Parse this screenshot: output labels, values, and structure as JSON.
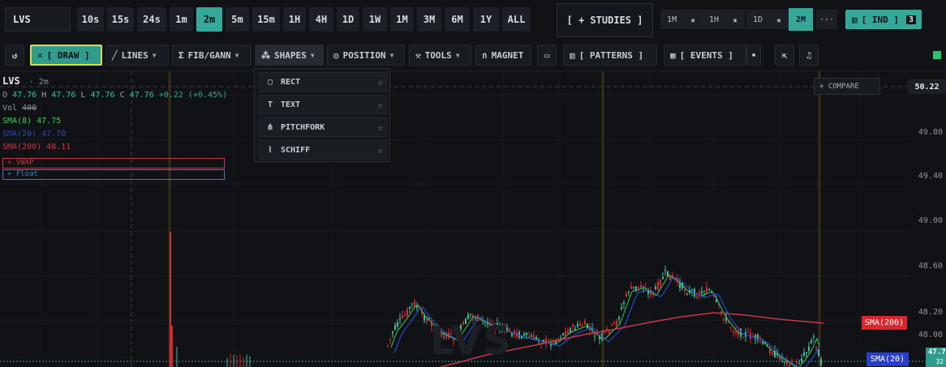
{
  "symbol": "LVS",
  "timeframes": [
    "10s",
    "15s",
    "24s",
    "1m",
    "2m",
    "5m",
    "15m",
    "1H",
    "4H",
    "1D",
    "1W",
    "1M",
    "3M",
    "6M",
    "1Y",
    "ALL"
  ],
  "active_timeframe": "2m",
  "studies_label": "[ + STUDIES ]",
  "quick_intervals": [
    {
      "label": "1M"
    },
    {
      "label": "1H"
    },
    {
      "label": "1D"
    },
    {
      "label": "2M",
      "active": true
    }
  ],
  "more_label": "···",
  "indicators": {
    "label": "[ IND ]",
    "count": "3"
  },
  "toolbar": {
    "reset_label": "↺",
    "draw_label": "[ DRAW ]",
    "lines_label": "LINES",
    "fib_label": "FIB/GANN",
    "shapes_label": "SHAPES",
    "position_label": "POSITION",
    "tools_label": "TOOLS",
    "magnet_label": "MAGNET",
    "patterns_label": "[ PATTERNS ]",
    "events_label": "[ EVENTS ]"
  },
  "shapes_menu": [
    {
      "label": "RECT",
      "icon": "rect-icon"
    },
    {
      "label": "TEXT",
      "icon": "text-icon"
    },
    {
      "label": "PITCHFORK",
      "icon": "pitchfork-icon"
    },
    {
      "label": "SCHIFF",
      "icon": "schiff-icon"
    }
  ],
  "legend": {
    "symbol": "LVS",
    "interval": "2m",
    "open": "47.76",
    "high": "47.76",
    "low": "47.76",
    "close": "47.76",
    "change": "+0.22 (+0.45%)",
    "vol_label": "Vol",
    "vol_value": "400",
    "sma8": "SMA(8) 47.75",
    "sma20": "SMA(20) 47.78",
    "sma200": "SMA(200) 48.11",
    "vwap": "+ VWAP",
    "float": "+ Float"
  },
  "compare_label": "+ COMPARE",
  "price_axis": [
    "49.80",
    "49.40",
    "49.00",
    "48.60",
    "48.20",
    "48.00"
  ],
  "current_price_label": "50.22",
  "sma200_tag": "SMA(200)",
  "sma20_tag": "SMA(20)",
  "last_price_tag": "47.7",
  "last_price_sub": "32",
  "watermark": "LVS",
  "colors": {
    "accent": "#36a89a",
    "draw_border": "#d7de4a",
    "sma8": "#3ccb57",
    "sma20": "#2a46c9",
    "sma200": "#c93744",
    "up_candle": "#3fbf9b",
    "down_candle": "#d9262f"
  }
}
